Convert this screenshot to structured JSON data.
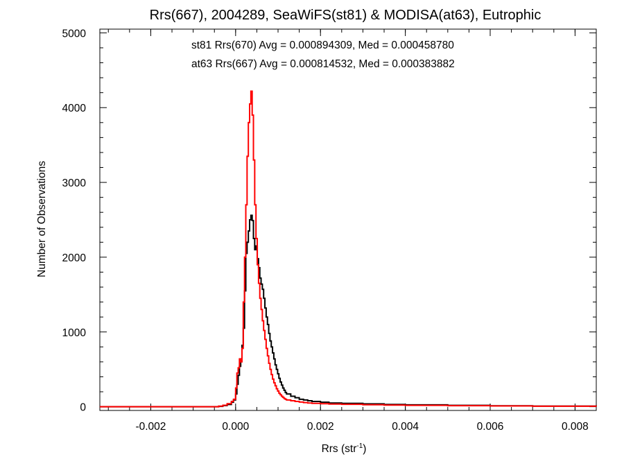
{
  "chart_data": {
    "type": "line",
    "title": "Rrs(667), 2004289, SeaWiFS(st81) & MODISA(at63), Eutrophic",
    "xlabel": "Rrs (str",
    "xlabel_sup": "-1",
    "xlabel_end": ")",
    "ylabel": "Number of Observations",
    "xlim": [
      -0.0032,
      0.0085
    ],
    "ylim": [
      -50,
      5050
    ],
    "xticks": [
      -0.002,
      0.0,
      0.002,
      0.004,
      0.006,
      0.008
    ],
    "xtick_labels": [
      "-0.002",
      "0.000",
      "0.002",
      "0.004",
      "0.006",
      "0.008"
    ],
    "yticks": [
      0,
      1000,
      2000,
      3000,
      4000,
      5000
    ],
    "ytick_labels": [
      "0",
      "1000",
      "2000",
      "3000",
      "4000",
      "5000"
    ],
    "annotations": [
      {
        "text": "st81 Rrs(670) Avg = 0.000894309, Med = 0.000458780",
        "color": "#000000"
      },
      {
        "text": "at63 Rrs(667) Avg = 0.000814532, Med = 0.000383882",
        "color": "#ff0000"
      }
    ],
    "series": [
      {
        "color": "#000000",
        "points": [
          [
            -0.0032,
            0
          ],
          [
            -0.0006,
            0
          ],
          [
            -0.0004,
            5
          ],
          [
            -0.0003,
            15
          ],
          [
            -0.0002,
            30
          ],
          [
            -0.0001,
            60
          ],
          [
            -5e-05,
            90
          ],
          [
            0.0,
            170
          ],
          [
            3e-05,
            300
          ],
          [
            6e-05,
            420
          ],
          [
            9e-05,
            540
          ],
          [
            0.00012,
            640
          ],
          [
            0.00015,
            820
          ],
          [
            0.00018,
            1050
          ],
          [
            0.00021,
            1550
          ],
          [
            0.00024,
            2050
          ],
          [
            0.00027,
            2200
          ],
          [
            0.0003,
            2350
          ],
          [
            0.00033,
            2500
          ],
          [
            0.00036,
            2560
          ],
          [
            0.00039,
            2490
          ],
          [
            0.00042,
            2250
          ],
          [
            0.00045,
            2100
          ],
          [
            0.00048,
            2150
          ],
          [
            0.00051,
            1980
          ],
          [
            0.00054,
            1860
          ],
          [
            0.00057,
            1720
          ],
          [
            0.0006,
            1640
          ],
          [
            0.00063,
            1570
          ],
          [
            0.00066,
            1450
          ],
          [
            0.00069,
            1320
          ],
          [
            0.00072,
            1200
          ],
          [
            0.00075,
            1100
          ],
          [
            0.00078,
            980
          ],
          [
            0.00081,
            880
          ],
          [
            0.00084,
            800
          ],
          [
            0.00087,
            720
          ],
          [
            0.0009,
            640
          ],
          [
            0.00093,
            560
          ],
          [
            0.00096,
            500
          ],
          [
            0.00099,
            440
          ],
          [
            0.00102,
            380
          ],
          [
            0.00105,
            330
          ],
          [
            0.00108,
            290
          ],
          [
            0.00111,
            250
          ],
          [
            0.00114,
            220
          ],
          [
            0.00117,
            190
          ],
          [
            0.0012,
            170
          ],
          [
            0.0013,
            140
          ],
          [
            0.0014,
            120
          ],
          [
            0.0015,
            100
          ],
          [
            0.0016,
            90
          ],
          [
            0.0017,
            80
          ],
          [
            0.0018,
            70
          ],
          [
            0.002,
            60
          ],
          [
            0.0022,
            50
          ],
          [
            0.0025,
            45
          ],
          [
            0.003,
            38
          ],
          [
            0.0035,
            30
          ],
          [
            0.004,
            25
          ],
          [
            0.005,
            18
          ],
          [
            0.006,
            12
          ],
          [
            0.007,
            8
          ],
          [
            0.0085,
            5
          ]
        ]
      },
      {
        "color": "#ff0000",
        "points": [
          [
            -0.0032,
            0
          ],
          [
            -0.0006,
            0
          ],
          [
            -0.0004,
            8
          ],
          [
            -0.0003,
            20
          ],
          [
            -0.0002,
            40
          ],
          [
            -0.0001,
            70
          ],
          [
            -5e-05,
            100
          ],
          [
            0.0,
            250
          ],
          [
            3e-05,
            450
          ],
          [
            6e-05,
            520
          ],
          [
            9e-05,
            640
          ],
          [
            0.00012,
            600
          ],
          [
            0.00015,
            780
          ],
          [
            0.00018,
            1400
          ],
          [
            0.00021,
            2000
          ],
          [
            0.00024,
            2700
          ],
          [
            0.00027,
            3350
          ],
          [
            0.0003,
            3800
          ],
          [
            0.00033,
            4050
          ],
          [
            0.00036,
            4220
          ],
          [
            0.00039,
            3900
          ],
          [
            0.00042,
            3300
          ],
          [
            0.00045,
            2700
          ],
          [
            0.00048,
            2250
          ],
          [
            0.00051,
            1900
          ],
          [
            0.00054,
            1650
          ],
          [
            0.00057,
            1450
          ],
          [
            0.0006,
            1300
          ],
          [
            0.00063,
            1150
          ],
          [
            0.00066,
            1020
          ],
          [
            0.00069,
            900
          ],
          [
            0.00072,
            780
          ],
          [
            0.00075,
            680
          ],
          [
            0.00078,
            580
          ],
          [
            0.00081,
            500
          ],
          [
            0.00084,
            430
          ],
          [
            0.00087,
            370
          ],
          [
            0.0009,
            320
          ],
          [
            0.00093,
            280
          ],
          [
            0.00096,
            240
          ],
          [
            0.00099,
            210
          ],
          [
            0.00102,
            180
          ],
          [
            0.00105,
            160
          ],
          [
            0.00108,
            140
          ],
          [
            0.00111,
            125
          ],
          [
            0.00114,
            110
          ],
          [
            0.00117,
            100
          ],
          [
            0.0012,
            90
          ],
          [
            0.0013,
            80
          ],
          [
            0.0014,
            70
          ],
          [
            0.0015,
            62
          ],
          [
            0.0016,
            56
          ],
          [
            0.0017,
            50
          ],
          [
            0.0018,
            45
          ],
          [
            0.002,
            40
          ],
          [
            0.0022,
            36
          ],
          [
            0.0025,
            32
          ],
          [
            0.003,
            26
          ],
          [
            0.0035,
            22
          ],
          [
            0.004,
            18
          ],
          [
            0.005,
            14
          ],
          [
            0.006,
            10
          ],
          [
            0.007,
            7
          ],
          [
            0.0085,
            4
          ]
        ]
      }
    ]
  }
}
